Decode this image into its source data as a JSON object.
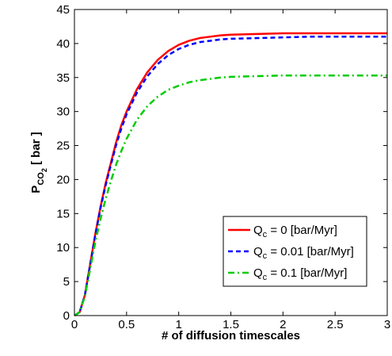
{
  "chart_data": {
    "type": "line",
    "xlabel": "# of diffusion timescales",
    "ylabel": {
      "main": "P",
      "sub1": "CO",
      "sub2": "2",
      "unit": " [ bar ]"
    },
    "xlim": [
      0,
      3
    ],
    "ylim": [
      0,
      45
    ],
    "xticks": [
      0,
      0.5,
      1,
      1.5,
      2,
      2.5,
      3
    ],
    "xtick_labels": [
      "0",
      "0.5",
      "1",
      "1.5",
      "2",
      "2.5",
      "3"
    ],
    "yticks": [
      0,
      5,
      10,
      15,
      20,
      25,
      30,
      35,
      40,
      45
    ],
    "ytick_labels": [
      "0",
      "5",
      "10",
      "15",
      "20",
      "25",
      "30",
      "35",
      "40",
      "45"
    ],
    "grid": false,
    "legend_position": "bottom-right",
    "series": [
      {
        "name_main": "Q",
        "name_sub": "c",
        "name_rest": " = 0 [bar/Myr]",
        "color": "#ff0000",
        "dash": "solid",
        "x": [
          0,
          0.05,
          0.1,
          0.15,
          0.2,
          0.25,
          0.3,
          0.35,
          0.4,
          0.45,
          0.5,
          0.6,
          0.7,
          0.8,
          0.9,
          1.0,
          1.1,
          1.2,
          1.3,
          1.4,
          1.5,
          1.75,
          2.0,
          2.25,
          2.5,
          2.75,
          3.0
        ],
        "y": [
          0,
          0.5,
          3,
          7.5,
          12,
          16,
          19.5,
          22.5,
          25.5,
          28,
          30,
          33.3,
          35.8,
          37.6,
          38.9,
          39.8,
          40.4,
          40.8,
          41.0,
          41.2,
          41.3,
          41.4,
          41.5,
          41.5,
          41.5,
          41.5,
          41.5
        ]
      },
      {
        "name_main": "Q",
        "name_sub": "c",
        "name_rest": " = 0.01 [bar/Myr]",
        "color": "#0000ff",
        "dash": "dashed",
        "x": [
          0,
          0.05,
          0.1,
          0.15,
          0.2,
          0.25,
          0.3,
          0.35,
          0.4,
          0.45,
          0.5,
          0.6,
          0.7,
          0.8,
          0.9,
          1.0,
          1.1,
          1.2,
          1.3,
          1.4,
          1.5,
          1.75,
          2.0,
          2.25,
          2.5,
          2.75,
          3.0
        ],
        "y": [
          0,
          0.5,
          3,
          7.4,
          11.8,
          15.8,
          19.2,
          22.2,
          25.1,
          27.5,
          29.6,
          32.8,
          35.2,
          37.0,
          38.3,
          39.2,
          39.8,
          40.2,
          40.4,
          40.6,
          40.7,
          40.8,
          40.9,
          41.0,
          41.0,
          41.0,
          41.0
        ]
      },
      {
        "name_main": "Q",
        "name_sub": "c",
        "name_rest": " = 0.1 [bar/Myr]",
        "color": "#00cc00",
        "dash": "dashdot",
        "x": [
          0,
          0.05,
          0.1,
          0.15,
          0.2,
          0.25,
          0.3,
          0.35,
          0.4,
          0.45,
          0.5,
          0.6,
          0.7,
          0.8,
          0.9,
          1.0,
          1.1,
          1.2,
          1.3,
          1.4,
          1.5,
          1.75,
          2.0,
          2.25,
          2.5,
          2.75,
          3.0
        ],
        "y": [
          0,
          0.5,
          2.8,
          6.8,
          10.8,
          14.2,
          17.2,
          19.8,
          22.2,
          24.2,
          26.0,
          28.8,
          30.8,
          32.2,
          33.2,
          33.8,
          34.3,
          34.6,
          34.8,
          35.0,
          35.1,
          35.2,
          35.3,
          35.3,
          35.3,
          35.3,
          35.3
        ]
      }
    ]
  }
}
